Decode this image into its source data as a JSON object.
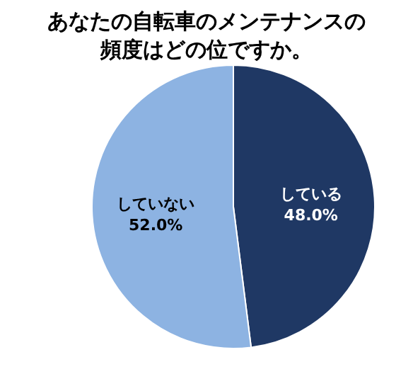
{
  "chart_data": {
    "type": "pie",
    "title": "あなたの自転車のメンテナンスの頻度はどの位ですか。",
    "categories": [
      "している",
      "していない"
    ],
    "values": [
      48.0,
      52.0
    ],
    "colors": [
      "#1f3864",
      "#8db3e2"
    ],
    "value_labels": [
      "48.0%",
      "52.0%"
    ]
  }
}
